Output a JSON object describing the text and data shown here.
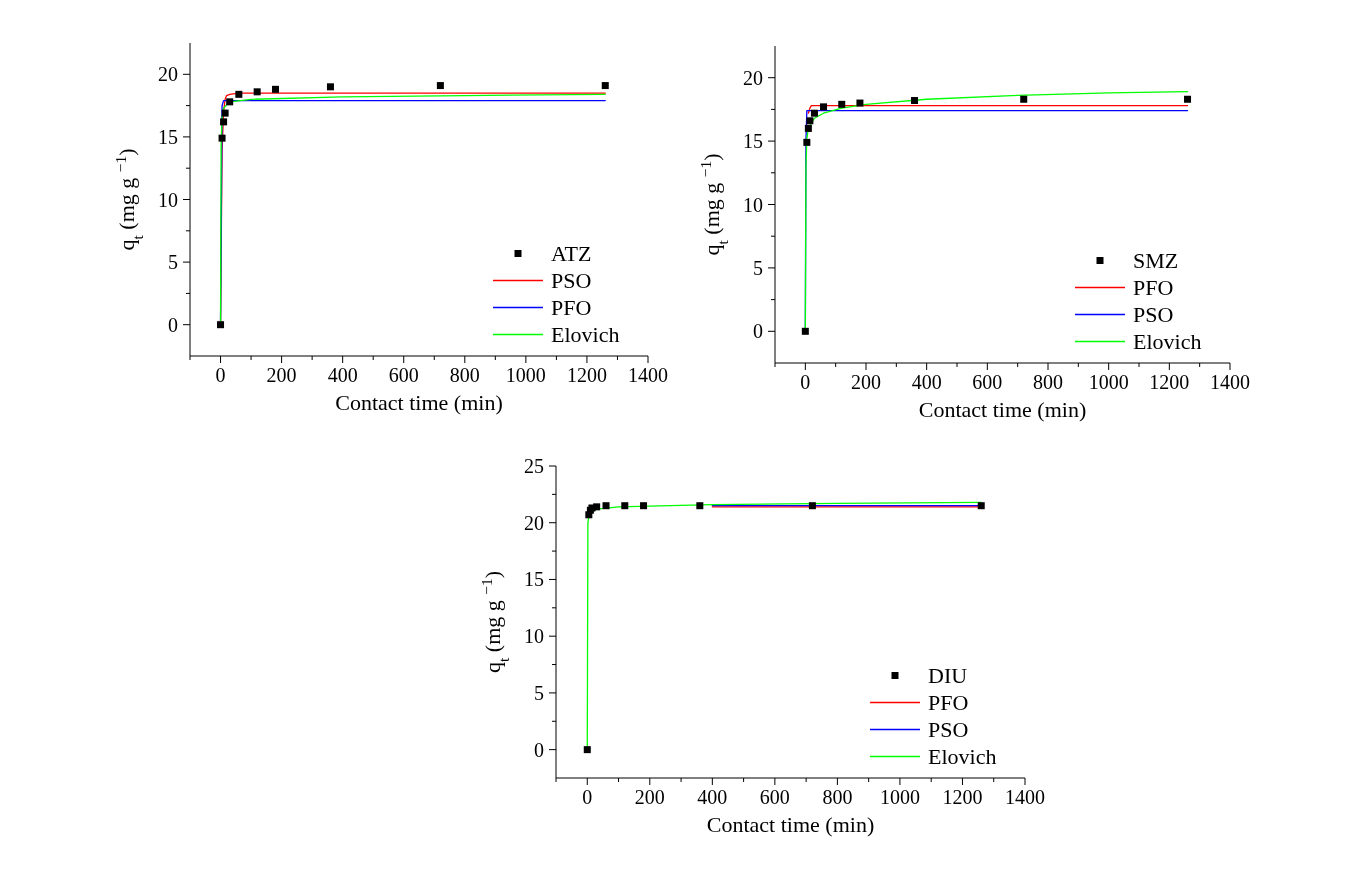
{
  "chart_data": [
    {
      "type": "scatter",
      "xlabel": "Contact time (min)",
      "ylabel": "q$_{t}$ (mg g $^{−1}$)",
      "xlim": [
        -100,
        1400
      ],
      "ylim": [
        -2.5,
        22.5
      ],
      "xticks": [
        0,
        200,
        400,
        600,
        800,
        1000,
        1200,
        1400,
        {
          "value": -100,
          "label": null
        },
        {
          "value": 100,
          "label": null
        },
        {
          "value": 300,
          "label": null
        },
        {
          "value": 500,
          "label": null
        },
        {
          "value": 700,
          "label": null
        },
        {
          "value": 900,
          "label": null
        },
        {
          "value": 1100,
          "label": null
        },
        {
          "value": 1300,
          "label": null
        }
      ],
      "yticks": [
        0,
        5,
        10,
        15,
        20,
        {
          "value": 2.5,
          "label": null
        },
        {
          "value": 7.5,
          "label": null
        },
        {
          "value": 12.5,
          "label": null
        },
        {
          "value": 17.5,
          "label": null
        }
      ],
      "legend": "bottom right",
      "series": [
        {
          "name": "ATZ",
          "marker": "square",
          "color": "#000000",
          "x": [
            0,
            5,
            10,
            15,
            30,
            60,
            120,
            180,
            360,
            720,
            1260
          ],
          "values": [
            0,
            14.9,
            16.2,
            16.9,
            17.8,
            18.4,
            18.6,
            18.8,
            19.0,
            19.1,
            19.1
          ]
        },
        {
          "name": "PSO",
          "type": "line",
          "color": "#ff0000",
          "x": [
            0,
            5,
            10,
            15,
            20,
            30,
            60,
            1260
          ],
          "values": [
            0,
            14,
            17,
            18,
            18.3,
            18.4,
            18.5,
            18.5
          ]
        },
        {
          "name": "PFO",
          "type": "line",
          "color": "#0000ff",
          "x": [
            0,
            5,
            10,
            1260
          ],
          "values": [
            0,
            17.5,
            17.9,
            17.9
          ]
        },
        {
          "name": "Elovich",
          "type": "line",
          "color": "#00ff00",
          "x": [
            0,
            2,
            5,
            10,
            30,
            100,
            400,
            800,
            1260
          ],
          "values": [
            0,
            14.5,
            16.5,
            17.3,
            17.8,
            18.0,
            18.2,
            18.3,
            18.4
          ]
        }
      ]
    },
    {
      "type": "scatter",
      "xlabel": "Contact time (min)",
      "ylabel": "q$_{t}$ (mg g $^{−1}$)",
      "xlim": [
        -100,
        1400
      ],
      "ylim": [
        -2.5,
        22.5
      ],
      "xticks": [
        0,
        200,
        400,
        600,
        800,
        1000,
        1200,
        1400,
        {
          "value": -100,
          "label": null
        },
        {
          "value": 100,
          "label": null
        },
        {
          "value": 300,
          "label": null
        },
        {
          "value": 500,
          "label": null
        },
        {
          "value": 700,
          "label": null
        },
        {
          "value": 900,
          "label": null
        },
        {
          "value": 1100,
          "label": null
        },
        {
          "value": 1300,
          "label": null
        }
      ],
      "yticks": [
        0,
        5,
        10,
        15,
        20,
        {
          "value": 2.5,
          "label": null
        },
        {
          "value": 7.5,
          "label": null
        },
        {
          "value": 12.5,
          "label": null
        },
        {
          "value": 17.5,
          "label": null
        }
      ],
      "legend": "bottom right",
      "series": [
        {
          "name": "SMZ",
          "marker": "square",
          "color": "#000000",
          "x": [
            0,
            5,
            10,
            15,
            30,
            60,
            120,
            180,
            360,
            720,
            1260
          ],
          "values": [
            0,
            14.9,
            16.0,
            16.6,
            17.2,
            17.7,
            17.9,
            18.0,
            18.2,
            18.3,
            18.3
          ]
        },
        {
          "name": "PFO",
          "type": "line",
          "color": "#ff0000",
          "x": [
            10,
            15,
            20,
            1260
          ],
          "values": [
            17.2,
            17.6,
            17.8,
            17.8
          ]
        },
        {
          "name": "PSO",
          "type": "line",
          "color": "#0000ff",
          "x": [
            0,
            2,
            5,
            1260
          ],
          "values": [
            0,
            15,
            17.4,
            17.4
          ]
        },
        {
          "name": "Elovich",
          "type": "line",
          "color": "#00ff00",
          "x": [
            0,
            2,
            5,
            10,
            30,
            60,
            120,
            200,
            400,
            700,
            1000,
            1260
          ],
          "values": [
            0,
            13,
            15.2,
            16.0,
            16.8,
            17.2,
            17.6,
            17.9,
            18.3,
            18.6,
            18.8,
            18.9
          ]
        }
      ]
    },
    {
      "type": "scatter",
      "xlabel": "Contact time (min)",
      "ylabel": "q$_{t}$ (mg g $^{−1}$)",
      "xlim": [
        -100,
        1400
      ],
      "ylim": [
        -2.5,
        25
      ],
      "xticks": [
        0,
        200,
        400,
        600,
        800,
        1000,
        1200,
        1400,
        {
          "value": -100,
          "label": null
        },
        {
          "value": 100,
          "label": null
        },
        {
          "value": 300,
          "label": null
        },
        {
          "value": 500,
          "label": null
        },
        {
          "value": 700,
          "label": null
        },
        {
          "value": 900,
          "label": null
        },
        {
          "value": 1100,
          "label": null
        },
        {
          "value": 1300,
          "label": null
        }
      ],
      "yticks": [
        0,
        5,
        10,
        15,
        20,
        25,
        {
          "value": 2.5,
          "label": null
        },
        {
          "value": 7.5,
          "label": null
        },
        {
          "value": 12.5,
          "label": null
        },
        {
          "value": 17.5,
          "label": null
        },
        {
          "value": 22.5,
          "label": null
        }
      ],
      "legend": "bottom right",
      "series": [
        {
          "name": "DIU",
          "marker": "square",
          "color": "#000000",
          "x": [
            0,
            5,
            10,
            15,
            30,
            60,
            120,
            180,
            360,
            720,
            1260
          ],
          "values": [
            0,
            20.7,
            21.1,
            21.3,
            21.4,
            21.5,
            21.5,
            21.5,
            21.5,
            21.5,
            21.5
          ]
        },
        {
          "name": "PFO",
          "type": "line",
          "color": "#ff0000",
          "x": [
            400,
            1260
          ],
          "values": [
            21.4,
            21.4
          ]
        },
        {
          "name": "PSO",
          "type": "line",
          "color": "#0000ff",
          "x": [
            400,
            1260
          ],
          "values": [
            21.5,
            21.5
          ]
        },
        {
          "name": "Elovich",
          "type": "line",
          "color": "#00ff00",
          "x": [
            0,
            2,
            5,
            10,
            30,
            100,
            400,
            800,
            1260
          ],
          "values": [
            0,
            20,
            20.6,
            20.9,
            21.2,
            21.4,
            21.6,
            21.7,
            21.8
          ]
        }
      ]
    }
  ]
}
